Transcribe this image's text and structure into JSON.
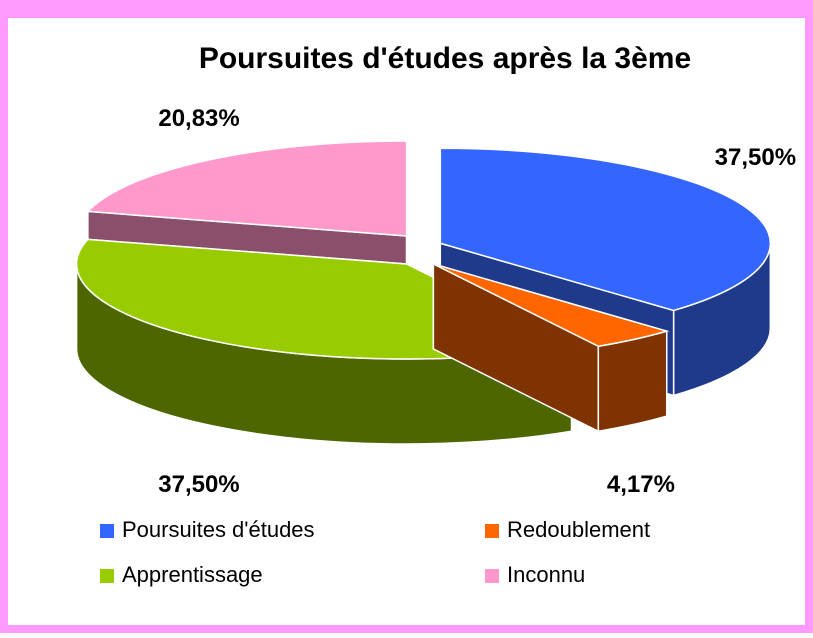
{
  "chart_data": {
    "type": "pie",
    "title": "Poursuites d'études après la 3ème",
    "categories": [
      "Poursuites d'études",
      "Redoublement",
      "Apprentissage",
      "Inconnu"
    ],
    "values": [
      37.5,
      4.17,
      37.5,
      20.83
    ],
    "value_labels": [
      "37,50%",
      "4,17%",
      "37,50%",
      "20,83%"
    ],
    "colors": [
      "#3366ff",
      "#ff6600",
      "#99cc00",
      "#ff99cc"
    ],
    "side_colors": [
      "#1f3a8a",
      "#7f3300",
      "#4d6600",
      "#8a4f6a"
    ],
    "legend": "bottom"
  }
}
